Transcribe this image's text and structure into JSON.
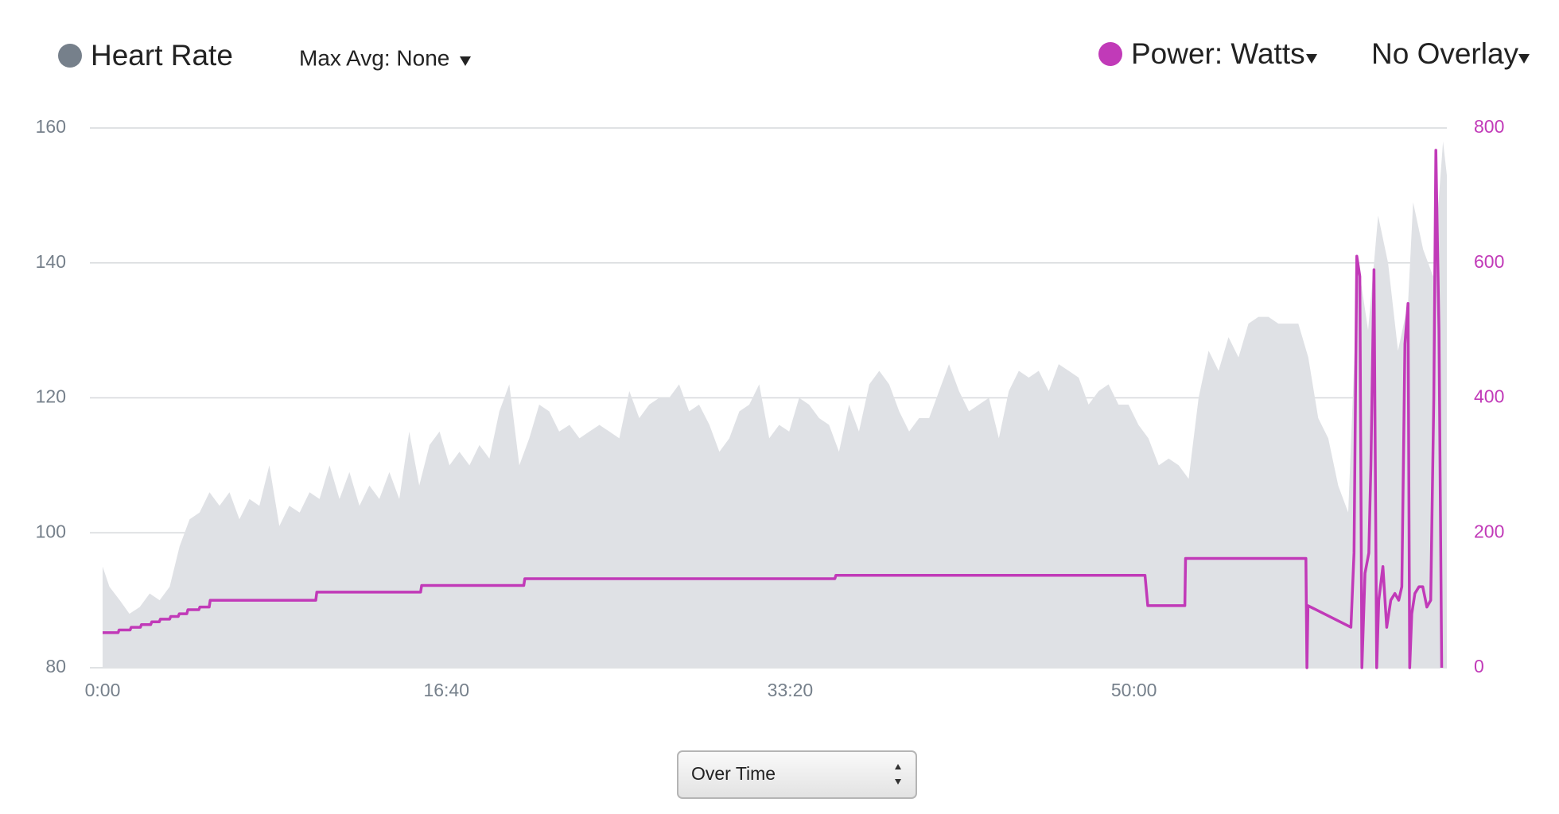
{
  "chart_data": {
    "type": "line",
    "max_avg_label": "Max Avg: None",
    "overlay_label": "No Overlay",
    "view_select": "Over Time",
    "xlim": [
      0,
      3910
    ],
    "xticks": [
      {
        "value": 0,
        "label": "0:00"
      },
      {
        "value": 1000,
        "label": "16:40"
      },
      {
        "value": 2000,
        "label": "33:20"
      },
      {
        "value": 3000,
        "label": "50:00"
      }
    ],
    "ylim": [
      80,
      160
    ],
    "yticks": [
      80,
      100,
      120,
      140,
      160
    ],
    "y2lim": [
      0,
      800
    ],
    "y2ticks": [
      0,
      200,
      400,
      600,
      800
    ],
    "grid": true,
    "series": [
      {
        "name": "Heart Rate",
        "color": "#76808b",
        "fill": "#dfe1e5",
        "x": [
          0,
          20,
          50,
          78,
          108,
          137,
          166,
          195,
          224,
          253,
          282,
          311,
          340,
          369,
          398,
          427,
          456,
          485,
          514,
          543,
          573,
          602,
          631,
          660,
          689,
          718,
          747,
          776,
          805,
          834,
          863,
          892,
          921,
          951,
          980,
          1009,
          1038,
          1067,
          1096,
          1125,
          1154,
          1183,
          1212,
          1241,
          1270,
          1299,
          1328,
          1358,
          1387,
          1416,
          1445,
          1474,
          1503,
          1532,
          1561,
          1590,
          1619,
          1648,
          1677,
          1706,
          1735,
          1765,
          1794,
          1823,
          1852,
          1881,
          1910,
          1939,
          1968,
          1997,
          2026,
          2055,
          2084,
          2113,
          2142,
          2171,
          2200,
          2230,
          2259,
          2288,
          2317,
          2346,
          2375,
          2404,
          2433,
          2462,
          2491,
          2520,
          2549,
          2578,
          2607,
          2636,
          2665,
          2694,
          2723,
          2752,
          2781,
          2810,
          2839,
          2868,
          2897,
          2926,
          2955,
          2984,
          3013,
          3042,
          3072,
          3101,
          3130,
          3159,
          3188,
          3217,
          3246,
          3275,
          3304,
          3333,
          3362,
          3391,
          3420,
          3449,
          3478,
          3507,
          3536,
          3565,
          3594,
          3623,
          3652,
          3681,
          3710,
          3739,
          3768,
          3797,
          3812,
          3841,
          3870,
          3899,
          3910
        ],
        "values": [
          95,
          92,
          90,
          88,
          89,
          91,
          90,
          92,
          98,
          102,
          103,
          106,
          104,
          106,
          102,
          105,
          104,
          110,
          101,
          104,
          103,
          106,
          105,
          110,
          105,
          109,
          104,
          107,
          105,
          109,
          105,
          115,
          107,
          113,
          115,
          110,
          112,
          110,
          113,
          111,
          118,
          122,
          110,
          114,
          119,
          118,
          115,
          116,
          114,
          115,
          116,
          115,
          114,
          121,
          117,
          119,
          120,
          120,
          122,
          118,
          119,
          116,
          112,
          114,
          118,
          119,
          122,
          114,
          116,
          115,
          120,
          119,
          117,
          116,
          112,
          119,
          115,
          122,
          124,
          122,
          118,
          115,
          117,
          117,
          121,
          125,
          121,
          118,
          119,
          120,
          114,
          121,
          124,
          123,
          124,
          121,
          125,
          124,
          123,
          119,
          121,
          122,
          119,
          119,
          116,
          114,
          110,
          111,
          110,
          108,
          120,
          127,
          124,
          129,
          126,
          131,
          132,
          132,
          131,
          131,
          131,
          126,
          117,
          114,
          107,
          103,
          140,
          130,
          147,
          140,
          127,
          134,
          149,
          142,
          138,
          158,
          153
        ]
      },
      {
        "name": "Power: Watts",
        "color": "#c13ab8",
        "axis": "y2",
        "x": [
          0,
          45,
          48,
          80,
          83,
          110,
          113,
          140,
          143,
          165,
          168,
          195,
          198,
          220,
          223,
          245,
          248,
          280,
          283,
          310,
          313,
          620,
          623,
          925,
          928,
          1225,
          1228,
          2130,
          2133,
          3032,
          3040,
          3148,
          3150,
          3500,
          3503,
          3506,
          3631,
          3640,
          3648,
          3657,
          3663,
          3672,
          3683,
          3689,
          3698,
          3706,
          3712,
          3724,
          3735,
          3747,
          3759,
          3770,
          3779,
          3788,
          3797,
          3802,
          3808,
          3817,
          3829,
          3840,
          3852,
          3863,
          3872,
          3878,
          3887,
          3895
        ],
        "values": [
          52,
          52,
          56,
          56,
          60,
          60,
          64,
          64,
          68,
          68,
          72,
          72,
          76,
          76,
          80,
          80,
          86,
          86,
          90,
          90,
          100,
          100,
          112,
          112,
          122,
          122,
          132,
          132,
          137,
          137,
          92,
          92,
          162,
          162,
          0,
          92,
          60,
          170,
          610,
          580,
          0,
          140,
          170,
          300,
          590,
          0,
          100,
          150,
          60,
          100,
          110,
          100,
          120,
          480,
          540,
          0,
          80,
          110,
          120,
          120,
          90,
          100,
          400,
          767,
          500,
          0
        ]
      }
    ]
  }
}
